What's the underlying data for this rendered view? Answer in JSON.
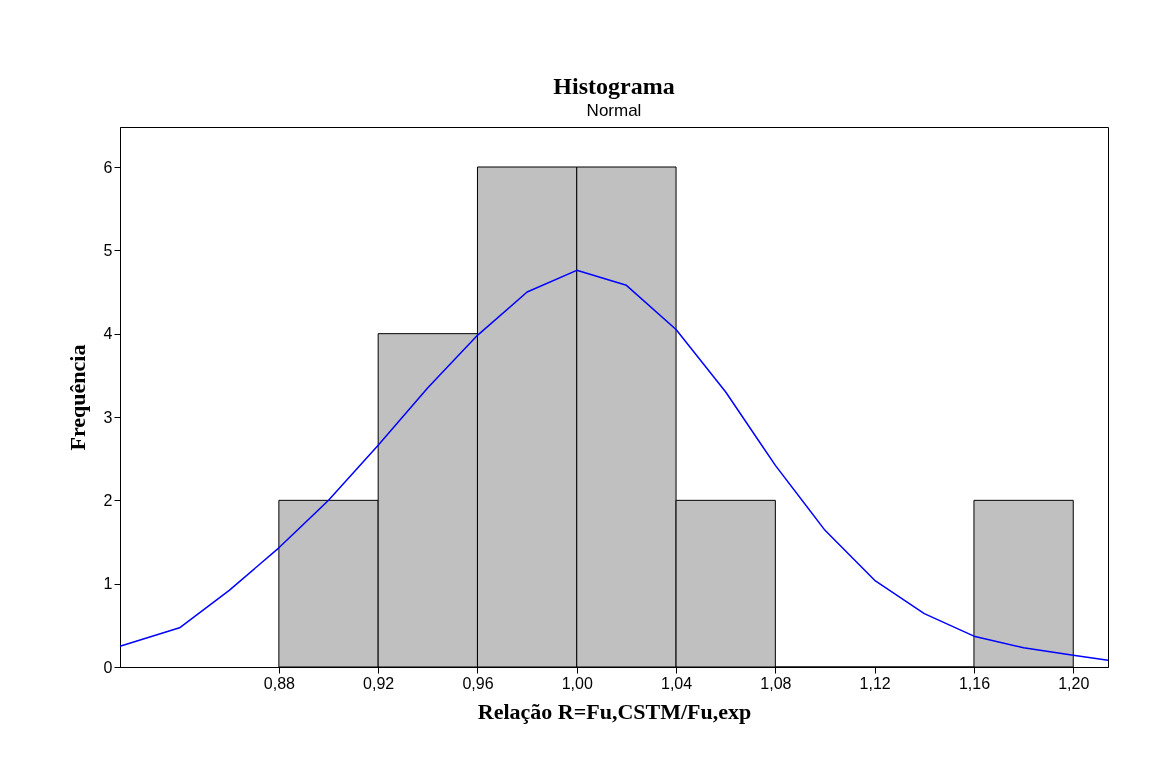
{
  "chart_data": {
    "type": "histogram",
    "title": "Histograma",
    "subtitle": "Normal",
    "xlabel": "Relação R=Fu,CSTM/Fu,exp",
    "ylabel": "Frequência",
    "bins": [
      0.88,
      0.92,
      0.96,
      1.0,
      1.04,
      1.08,
      1.12,
      1.16,
      1.2
    ],
    "values": [
      2,
      4,
      6,
      6,
      2,
      0,
      0,
      2
    ],
    "color": "#c0c0c0",
    "series": [
      {
        "type": "line",
        "color": "#0000ff",
        "x": [
          0.816,
          0.84,
          0.86,
          0.88,
          0.9,
          0.92,
          0.94,
          0.96,
          0.98,
          1.0,
          1.02,
          1.04,
          1.06,
          1.08,
          1.1,
          1.12,
          1.14,
          1.16,
          1.18,
          1.2,
          1.214
        ],
        "values": [
          0.25,
          0.47,
          0.92,
          1.43,
          2.0,
          2.66,
          3.35,
          3.98,
          4.5,
          4.76,
          4.58,
          4.05,
          3.3,
          2.42,
          1.64,
          1.04,
          0.64,
          0.37,
          0.23,
          0.14,
          0.08
        ]
      }
    ],
    "xlim": [
      0.816,
      1.214
    ],
    "ylim": [
      0,
      6.48
    ],
    "xticks": [
      {
        "value": 0.88,
        "label": "0,88"
      },
      {
        "value": 0.92,
        "label": "0,92"
      },
      {
        "value": 0.96,
        "label": "0,96"
      },
      {
        "value": 1.0,
        "label": "1,00"
      },
      {
        "value": 1.04,
        "label": "1,04"
      },
      {
        "value": 1.08,
        "label": "1,08"
      },
      {
        "value": 1.12,
        "label": "1,12"
      },
      {
        "value": 1.16,
        "label": "1,16"
      },
      {
        "value": 1.2,
        "label": "1,20"
      }
    ],
    "yticks": [
      0,
      1,
      2,
      3,
      4,
      5,
      6
    ],
    "grid": false
  }
}
